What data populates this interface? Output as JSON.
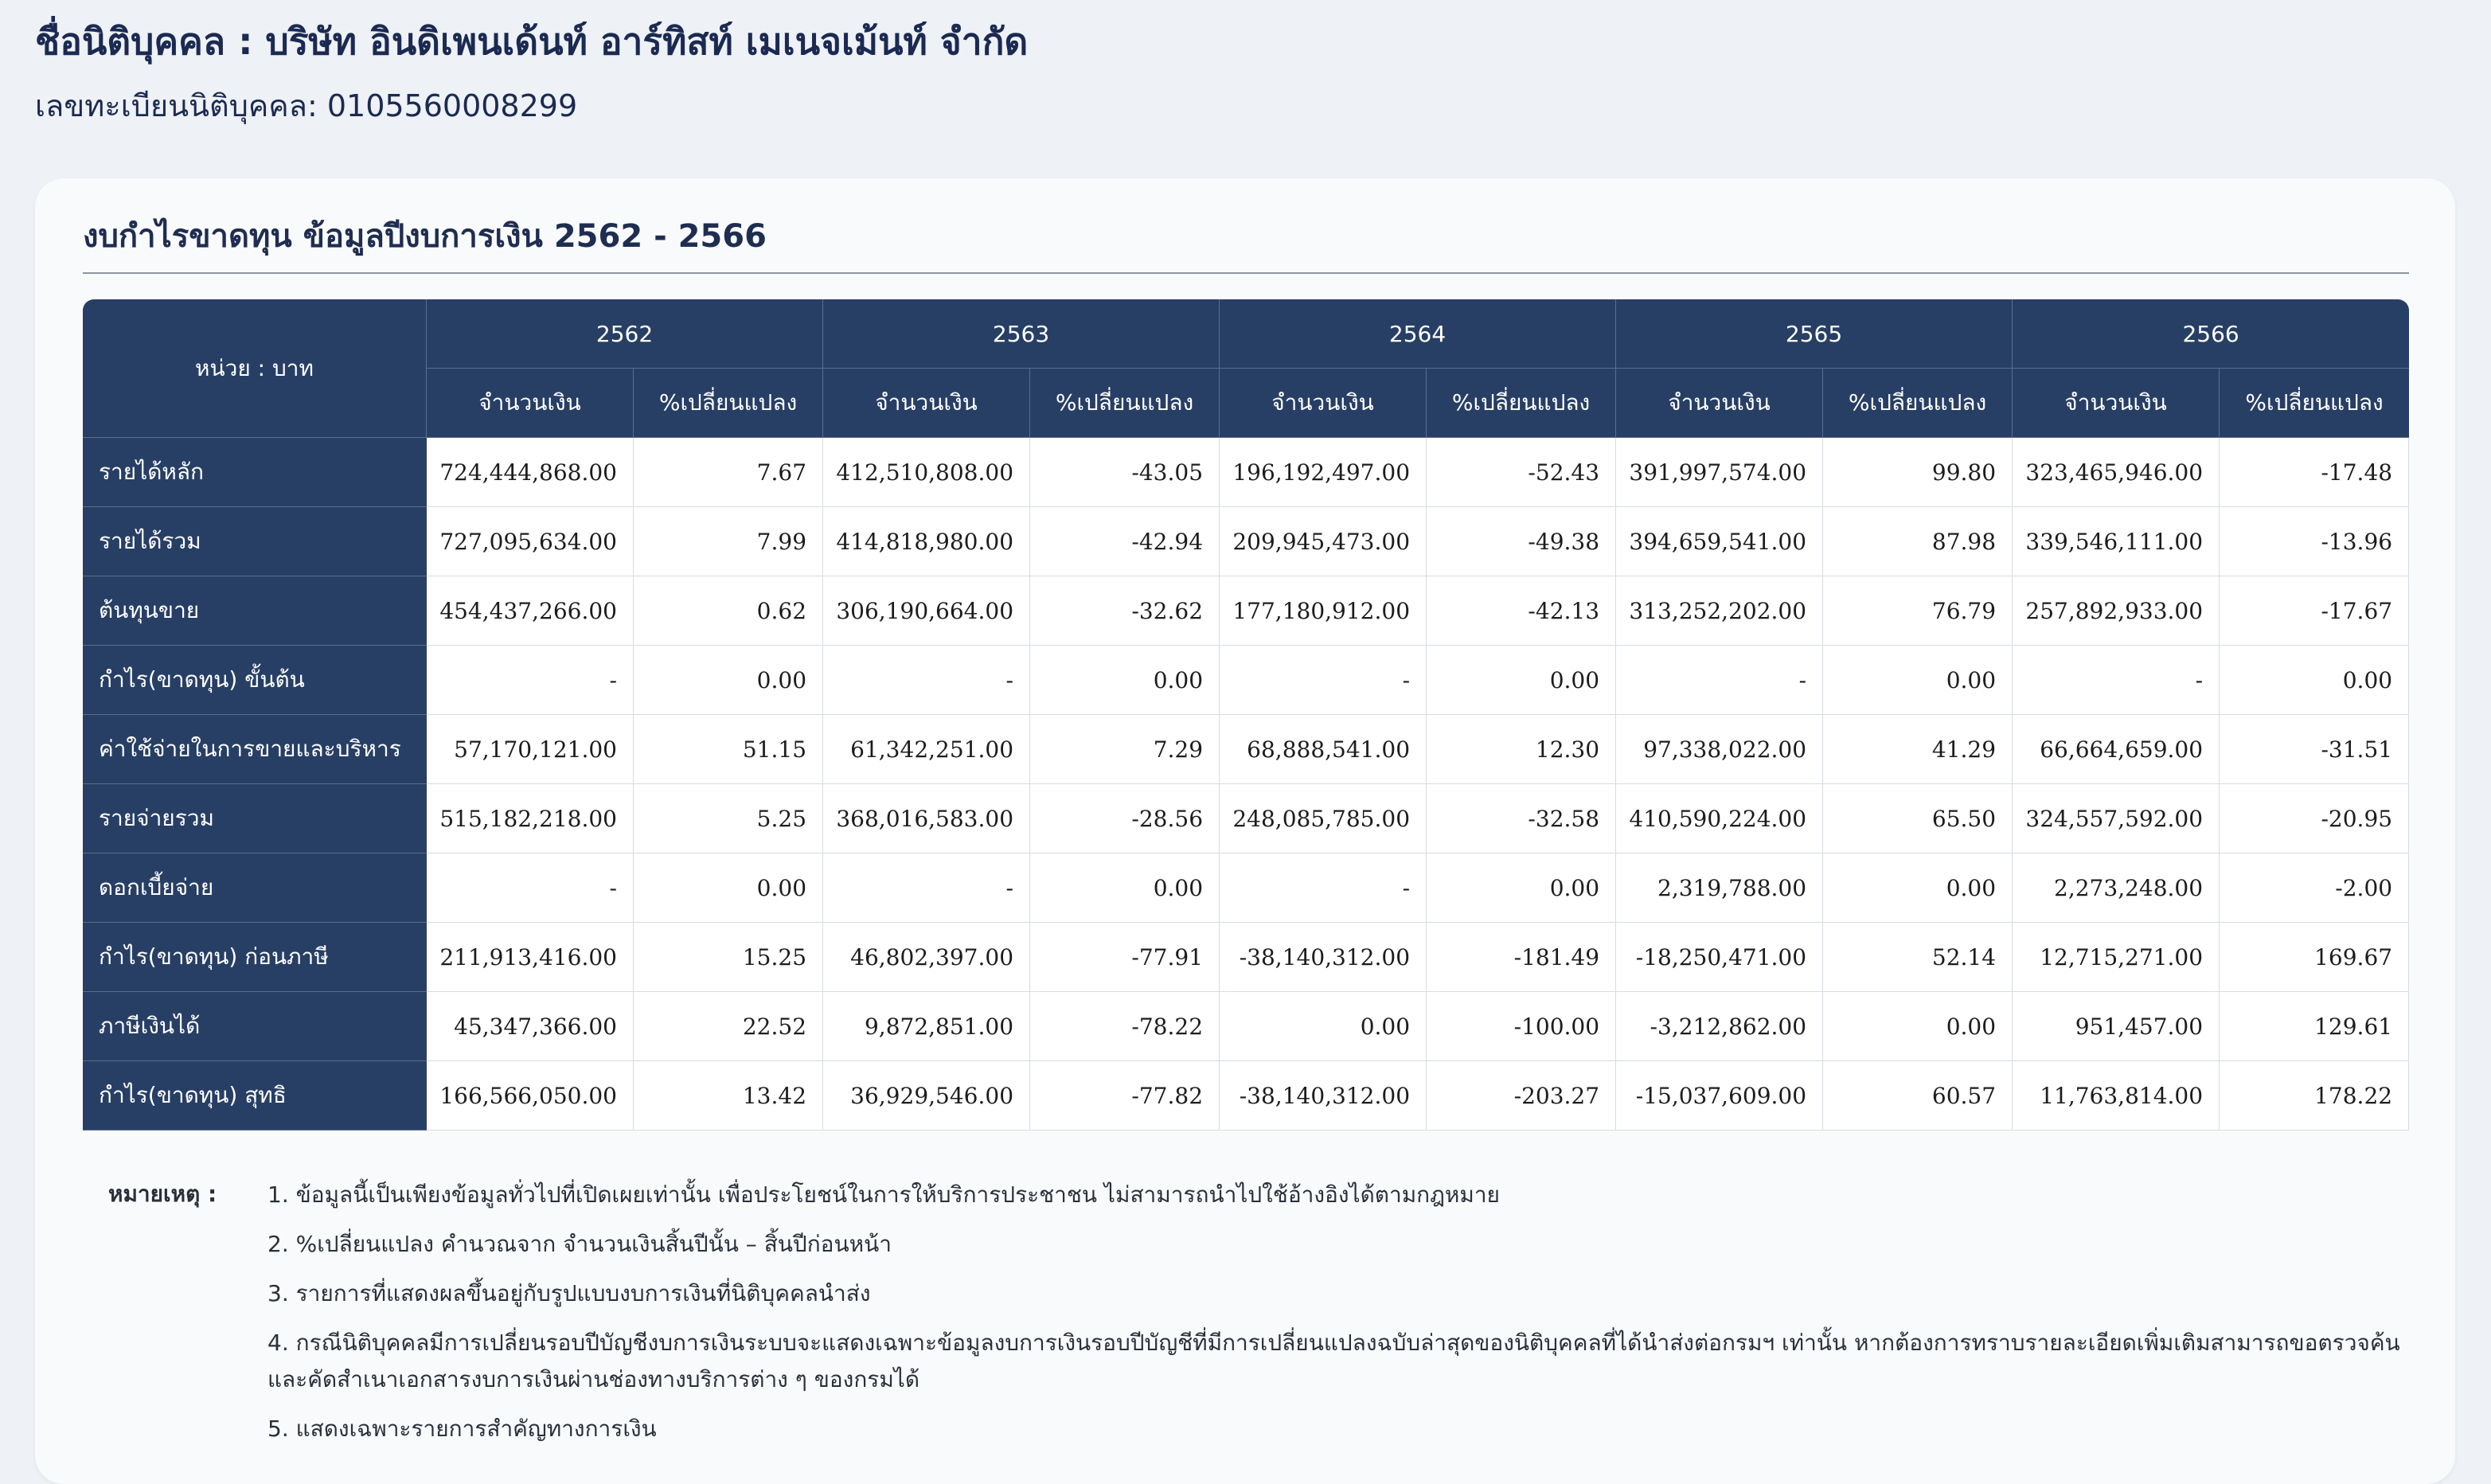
{
  "header": {
    "company_name": "ชื่อนิติบุคคล : บริษัท อินดิเพนเด้นท์ อาร์ทิสท์ เมเนจเม้นท์ จำกัด",
    "registration": "เลขทะเบียนนิติบุคคล: 0105560008299"
  },
  "card": {
    "title": "งบกำไรขาดทุน ข้อมูลปีงบการเงิน 2562 - 2566"
  },
  "table": {
    "unit_label": "หน่วย : บาท",
    "amount_header": "จำนวนเงิน",
    "change_header": "%เปลี่ยนแปลง",
    "years": [
      "2562",
      "2563",
      "2564",
      "2565",
      "2566"
    ],
    "rows": [
      {
        "label": "รายได้หลัก",
        "cells": [
          "724,444,868.00",
          "7.67",
          "412,510,808.00",
          "-43.05",
          "196,192,497.00",
          "-52.43",
          "391,997,574.00",
          "99.80",
          "323,465,946.00",
          "-17.48"
        ]
      },
      {
        "label": "รายได้รวม",
        "cells": [
          "727,095,634.00",
          "7.99",
          "414,818,980.00",
          "-42.94",
          "209,945,473.00",
          "-49.38",
          "394,659,541.00",
          "87.98",
          "339,546,111.00",
          "-13.96"
        ]
      },
      {
        "label": "ต้นทุนขาย",
        "cells": [
          "454,437,266.00",
          "0.62",
          "306,190,664.00",
          "-32.62",
          "177,180,912.00",
          "-42.13",
          "313,252,202.00",
          "76.79",
          "257,892,933.00",
          "-17.67"
        ]
      },
      {
        "label": "กำไร(ขาดทุน) ขั้นต้น",
        "cells": [
          "-",
          "0.00",
          "-",
          "0.00",
          "-",
          "0.00",
          "-",
          "0.00",
          "-",
          "0.00"
        ]
      },
      {
        "label": "ค่าใช้จ่ายในการขายและบริหาร",
        "cells": [
          "57,170,121.00",
          "51.15",
          "61,342,251.00",
          "7.29",
          "68,888,541.00",
          "12.30",
          "97,338,022.00",
          "41.29",
          "66,664,659.00",
          "-31.51"
        ]
      },
      {
        "label": "รายจ่ายรวม",
        "cells": [
          "515,182,218.00",
          "5.25",
          "368,016,583.00",
          "-28.56",
          "248,085,785.00",
          "-32.58",
          "410,590,224.00",
          "65.50",
          "324,557,592.00",
          "-20.95"
        ]
      },
      {
        "label": "ดอกเบี้ยจ่าย",
        "cells": [
          "-",
          "0.00",
          "-",
          "0.00",
          "-",
          "0.00",
          "2,319,788.00",
          "0.00",
          "2,273,248.00",
          "-2.00"
        ]
      },
      {
        "label": "กำไร(ขาดทุน) ก่อนภาษี",
        "cells": [
          "211,913,416.00",
          "15.25",
          "46,802,397.00",
          "-77.91",
          "-38,140,312.00",
          "-181.49",
          "-18,250,471.00",
          "52.14",
          "12,715,271.00",
          "169.67"
        ]
      },
      {
        "label": "ภาษีเงินได้",
        "cells": [
          "45,347,366.00",
          "22.52",
          "9,872,851.00",
          "-78.22",
          "0.00",
          "-100.00",
          "-3,212,862.00",
          "0.00",
          "951,457.00",
          "129.61"
        ]
      },
      {
        "label": "กำไร(ขาดทุน) สุทธิ",
        "cells": [
          "166,566,050.00",
          "13.42",
          "36,929,546.00",
          "-77.82",
          "-38,140,312.00",
          "-203.27",
          "-15,037,609.00",
          "60.57",
          "11,763,814.00",
          "178.22"
        ]
      }
    ]
  },
  "notes": {
    "label": "หมายเหตุ :",
    "items": [
      "1. ข้อมูลนี้เป็นเพียงข้อมูลทั่วไปที่เปิดเผยเท่านั้น เพื่อประโยชน์ในการให้บริการประชาชน ไม่สามารถนำไปใช้อ้างอิงได้ตามกฎหมาย",
      "2. %เปลี่ยนแปลง คำนวณจาก จำนวนเงินสิ้นปีนั้น – สิ้นปีก่อนหน้า",
      "3. รายการที่แสดงผลขึ้นอยู่กับรูปแบบงบการเงินที่นิติบุคคลนำส่ง",
      "4. กรณีนิติบุคคลมีการเปลี่ยนรอบปีบัญชีงบการเงินระบบจะแสดงเฉพาะข้อมูลงบการเงินรอบปีบัญชีที่มีการเปลี่ยนแปลงฉบับล่าสุดของนิติบุคคลที่ได้นำส่งต่อกรมฯ เท่านั้น หากต้องการทราบรายละเอียดเพิ่มเติมสามารถขอตรวจค้นและคัดสำเนาเอกสารงบการเงินผ่านช่องทางบริการต่าง ๆ ของกรมได้",
      "5. แสดงเฉพาะรายการสำคัญทางการเงิน"
    ]
  }
}
